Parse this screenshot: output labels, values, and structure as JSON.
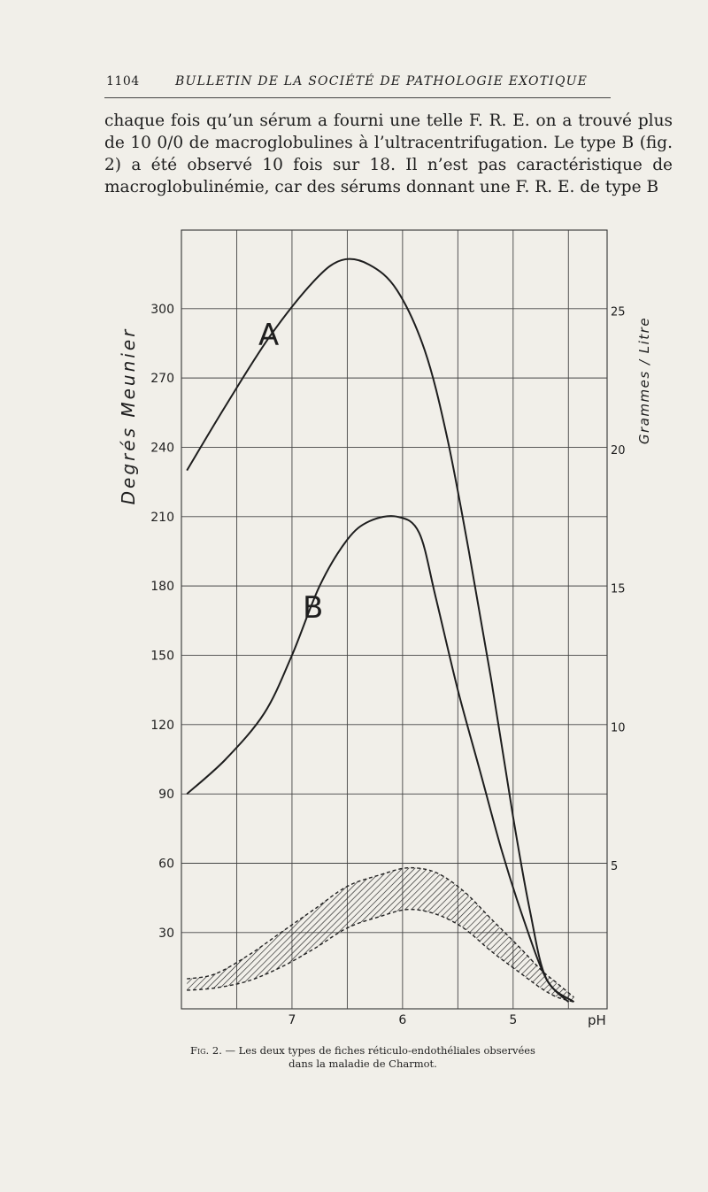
{
  "header": {
    "page_number": "1104",
    "journal_title": "BULLETIN DE LA SOCIÉTÉ DE PATHOLOGIE EXOTIQUE"
  },
  "body": {
    "paragraph": "chaque fois qu’un sérum a fourni une telle F. R. E. on a trouvé plus de 10 0/0 de macroglobulines à l’ultracentrifugation. Le type B (fig. 2) a été observé 10 fois sur 18. Il n’est pas caractéristique de macroglobulinémie, car des sérums donnant une F. R. E. de type B"
  },
  "caption": {
    "fig_label": "Fig. 2.",
    "text": " — Les deux types de fiches réticulo-endothéliales observées dans la maladie de Charmot."
  },
  "chart_data": {
    "type": "line",
    "xlabel": "pH",
    "ylabel_left": "Degrés Meunier",
    "ylabel_right": "Grammes / Litre",
    "x_ticks": [
      "7",
      "6",
      "5"
    ],
    "y_ticks_left": [
      "300",
      "270",
      "240",
      "210",
      "180",
      "150",
      "120",
      "90",
      "60",
      "30"
    ],
    "y_ticks_right": [
      "25",
      "20",
      "15",
      "10",
      "5"
    ],
    "xlim": [
      8.0,
      4.15
    ],
    "ylim_left": [
      -3,
      334
    ],
    "grid": true,
    "series": [
      {
        "name": "A",
        "x": [
          7.95,
          7.6,
          7.2,
          6.8,
          6.55,
          6.3,
          6.05,
          5.8,
          5.6,
          5.4,
          5.2,
          5.0,
          4.85,
          4.7,
          4.45
        ],
        "values": [
          230,
          258,
          288,
          312,
          321,
          319,
          308,
          282,
          245,
          195,
          140,
          80,
          40,
          10,
          0
        ]
      },
      {
        "name": "B",
        "x": [
          7.95,
          7.6,
          7.25,
          7.0,
          6.75,
          6.5,
          6.3,
          6.05,
          5.85,
          5.7,
          5.5,
          5.3,
          5.1,
          4.9,
          4.7,
          4.5
        ],
        "values": [
          90,
          105,
          125,
          150,
          180,
          200,
          208,
          210,
          203,
          175,
          135,
          100,
          65,
          35,
          10,
          0
        ]
      }
    ],
    "band": {
      "x": [
        7.95,
        7.7,
        7.4,
        7.1,
        6.8,
        6.5,
        6.2,
        5.95,
        5.7,
        5.45,
        5.2,
        4.95,
        4.75,
        4.6,
        4.45
      ],
      "upper": [
        10,
        12,
        20,
        30,
        40,
        50,
        55,
        58,
        56,
        48,
        36,
        24,
        14,
        8,
        2
      ],
      "lower": [
        5,
        6,
        9,
        15,
        23,
        32,
        37,
        40,
        38,
        32,
        22,
        13,
        6,
        2,
        0
      ]
    },
    "annotations": [
      "A",
      "B"
    ]
  }
}
